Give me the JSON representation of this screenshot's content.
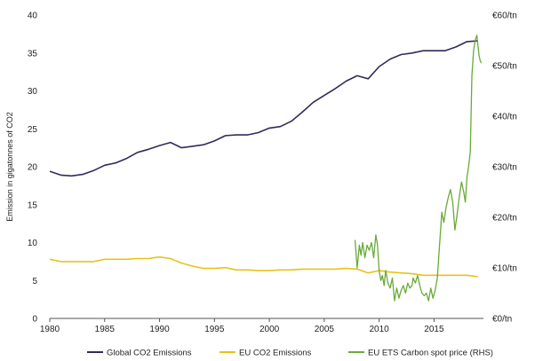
{
  "chart_data": {
    "type": "line",
    "ylabel": "Emission in gigatonnes of CO2",
    "y2label": "",
    "xlim": [
      1980,
      2019.5
    ],
    "ylim": [
      0,
      40
    ],
    "y2lim": [
      0,
      60
    ],
    "x_ticks": [
      "1980",
      "1985",
      "1990",
      "1995",
      "2000",
      "2005",
      "2010",
      "2015"
    ],
    "y_ticks": [
      "0",
      "5",
      "10",
      "15",
      "20",
      "25",
      "30",
      "35",
      "40"
    ],
    "y2_ticks": [
      "€0/tn",
      "€10/tn",
      "€20/tn",
      "€30/tn",
      "€40/tn",
      "€50/tn",
      "€60/tn"
    ],
    "grid": false,
    "legend_position": "bottom",
    "series": [
      {
        "name": "Global CO2 Emissions",
        "axis": "left",
        "color": "#2e2c5c",
        "x": [
          1980,
          1981,
          1982,
          1983,
          1984,
          1985,
          1986,
          1987,
          1988,
          1989,
          1990,
          1991,
          1992,
          1993,
          1994,
          1995,
          1996,
          1997,
          1998,
          1999,
          2000,
          2001,
          2002,
          2003,
          2004,
          2005,
          2006,
          2007,
          2008,
          2009,
          2010,
          2011,
          2012,
          2013,
          2014,
          2015,
          2016,
          2017,
          2018,
          2019
        ],
        "values": [
          19.4,
          18.9,
          18.8,
          19.0,
          19.5,
          20.2,
          20.5,
          21.1,
          21.9,
          22.3,
          22.8,
          23.2,
          22.5,
          22.7,
          22.9,
          23.4,
          24.1,
          24.2,
          24.2,
          24.5,
          25.1,
          25.3,
          26.0,
          27.2,
          28.5,
          29.4,
          30.3,
          31.3,
          32.0,
          31.6,
          33.2,
          34.2,
          34.8,
          35.0,
          35.3,
          35.3,
          35.3,
          35.8,
          36.5,
          36.6
        ]
      },
      {
        "name": "EU CO2 Emissions",
        "axis": "left",
        "color": "#e8c21c",
        "x": [
          1980,
          1981,
          1982,
          1983,
          1984,
          1985,
          1986,
          1987,
          1988,
          1989,
          1990,
          1991,
          1992,
          1993,
          1994,
          1995,
          1996,
          1997,
          1998,
          1999,
          2000,
          2001,
          2002,
          2003,
          2004,
          2005,
          2006,
          2007,
          2008,
          2009,
          2010,
          2011,
          2012,
          2013,
          2014,
          2015,
          2016,
          2017,
          2018,
          2019
        ],
        "values": [
          7.8,
          7.5,
          7.5,
          7.5,
          7.5,
          7.8,
          7.8,
          7.8,
          7.9,
          7.9,
          8.1,
          7.9,
          7.3,
          6.9,
          6.6,
          6.6,
          6.7,
          6.4,
          6.4,
          6.3,
          6.3,
          6.4,
          6.4,
          6.5,
          6.5,
          6.5,
          6.5,
          6.6,
          6.5,
          6.0,
          6.3,
          6.1,
          6.0,
          5.9,
          5.7,
          5.7,
          5.7,
          5.7,
          5.7,
          5.5
        ]
      },
      {
        "name": "EU ETS Carbon spot price (RHS)",
        "axis": "right",
        "color": "#6aaa3a",
        "x": [
          2007.8,
          2008.0,
          2008.2,
          2008.35,
          2008.5,
          2008.7,
          2008.9,
          2009.1,
          2009.3,
          2009.5,
          2009.7,
          2009.85,
          2010.0,
          2010.15,
          2010.3,
          2010.45,
          2010.6,
          2010.8,
          2011.0,
          2011.2,
          2011.4,
          2011.6,
          2011.8,
          2012.0,
          2012.2,
          2012.4,
          2012.6,
          2012.8,
          2013.0,
          2013.1,
          2013.3,
          2013.5,
          2013.7,
          2013.9,
          2014.1,
          2014.3,
          2014.5,
          2014.7,
          2014.9,
          2015.1,
          2015.3,
          2015.5,
          2015.7,
          2015.9,
          2016.1,
          2016.3,
          2016.5,
          2016.7,
          2016.9,
          2017.1,
          2017.3,
          2017.5,
          2017.7,
          2017.85,
          2018.0,
          2018.15,
          2018.3,
          2018.45,
          2018.6,
          2018.75,
          2018.9,
          2019.0,
          2019.1,
          2019.2,
          2019.3
        ],
        "values": [
          15.5,
          10.0,
          14.5,
          12.5,
          15.0,
          12.0,
          14.5,
          13.5,
          15.0,
          12.0,
          16.5,
          14.5,
          9.5,
          7.5,
          8.5,
          6.5,
          9.5,
          7.0,
          6.0,
          8.0,
          3.5,
          6.0,
          4.0,
          5.5,
          6.5,
          5.0,
          7.0,
          6.0,
          6.5,
          8.0,
          7.0,
          8.5,
          6.5,
          5.0,
          4.5,
          5.0,
          3.5,
          6.0,
          4.0,
          5.5,
          8.0,
          14.5,
          21.0,
          19.0,
          22.0,
          24.0,
          25.5,
          23.0,
          17.5,
          20.5,
          24.0,
          27.0,
          25.0,
          23.0,
          28.0,
          30.0,
          33.0,
          48.0,
          53.0,
          55.0,
          56.0,
          54.0,
          52.0,
          51.0,
          50.5
        ]
      }
    ]
  }
}
